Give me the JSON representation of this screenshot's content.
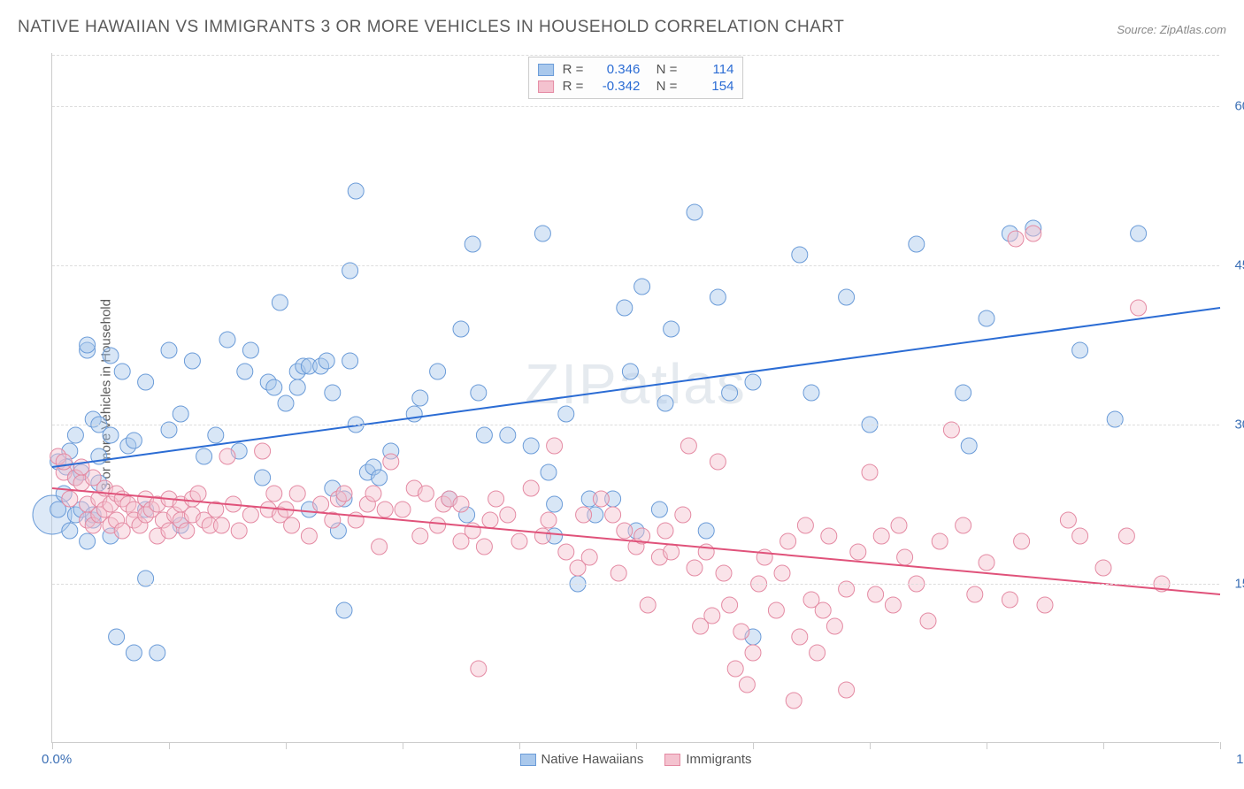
{
  "title": "NATIVE HAWAIIAN VS IMMIGRANTS 3 OR MORE VEHICLES IN HOUSEHOLD CORRELATION CHART",
  "source_label": "Source:",
  "source_value": "ZipAtlas.com",
  "ylabel": "3 or more Vehicles in Household",
  "watermark": "ZIPatlas",
  "chart": {
    "type": "scatter",
    "xlim": [
      0,
      100
    ],
    "ylim": [
      0,
      65
    ],
    "background_color": "#ffffff",
    "grid_color": "#dddddd",
    "axis_color": "#cccccc",
    "tick_label_color": "#3b6fb5",
    "tick_fontsize": 15,
    "yticks": [
      15,
      30,
      45,
      60
    ],
    "ytick_labels": [
      "15.0%",
      "30.0%",
      "45.0%",
      "60.0%"
    ],
    "xticks": [
      0,
      10,
      20,
      30,
      40,
      50,
      60,
      70,
      80,
      90,
      100
    ],
    "xlabel_min": "0.0%",
    "xlabel_max": "100.0%",
    "marker_radius": 9,
    "marker_opacity": 0.45,
    "line_width": 2
  },
  "series": [
    {
      "name": "Native Hawaiians",
      "color_fill": "#a9c8ec",
      "color_stroke": "#6a9bd8",
      "line_color": "#2b6cd4",
      "R": "0.346",
      "N": "114",
      "trend": {
        "x1": 0,
        "y1": 26,
        "x2": 100,
        "y2": 41
      },
      "points": [
        [
          0.5,
          26.5
        ],
        [
          0.5,
          22
        ],
        [
          1,
          23.5
        ],
        [
          1.2,
          26
        ],
        [
          1.5,
          27.5
        ],
        [
          1.5,
          20
        ],
        [
          2,
          25
        ],
        [
          2,
          21.5
        ],
        [
          2,
          29
        ],
        [
          2.5,
          25.5
        ],
        [
          2.5,
          22
        ],
        [
          3,
          37
        ],
        [
          3,
          37.5
        ],
        [
          3,
          19
        ],
        [
          3.5,
          21
        ],
        [
          3.5,
          21.5
        ],
        [
          3.5,
          30.5
        ],
        [
          4,
          27
        ],
        [
          4,
          30
        ],
        [
          4,
          24.5
        ],
        [
          5,
          19.5
        ],
        [
          5,
          36.5
        ],
        [
          5,
          29
        ],
        [
          5.5,
          10
        ],
        [
          6,
          35
        ],
        [
          6.5,
          28
        ],
        [
          7,
          8.5
        ],
        [
          7,
          28.5
        ],
        [
          8,
          34
        ],
        [
          8,
          22
        ],
        [
          8,
          15.5
        ],
        [
          9,
          8.5
        ],
        [
          10,
          29.5
        ],
        [
          10,
          37
        ],
        [
          11,
          20.5
        ],
        [
          11,
          31
        ],
        [
          12,
          36
        ],
        [
          13,
          27
        ],
        [
          14,
          29
        ],
        [
          15,
          38
        ],
        [
          16,
          27.5
        ],
        [
          16.5,
          35
        ],
        [
          17,
          37
        ],
        [
          18,
          25
        ],
        [
          18.5,
          34
        ],
        [
          19,
          33.5
        ],
        [
          19.5,
          41.5
        ],
        [
          20,
          32
        ],
        [
          21,
          33.5
        ],
        [
          21,
          35
        ],
        [
          21.5,
          35.5
        ],
        [
          22,
          22
        ],
        [
          22,
          35.5
        ],
        [
          23,
          35.5
        ],
        [
          23.5,
          36
        ],
        [
          24,
          24
        ],
        [
          24,
          33
        ],
        [
          24.5,
          20
        ],
        [
          25,
          23
        ],
        [
          25,
          12.5
        ],
        [
          25.5,
          44.5
        ],
        [
          25.5,
          36
        ],
        [
          26,
          52
        ],
        [
          26,
          30
        ],
        [
          27,
          25.5
        ],
        [
          27.5,
          26
        ],
        [
          28,
          25
        ],
        [
          29,
          27.5
        ],
        [
          31,
          31
        ],
        [
          31.5,
          32.5
        ],
        [
          33,
          35
        ],
        [
          34,
          23
        ],
        [
          35,
          39
        ],
        [
          35.5,
          21.5
        ],
        [
          36,
          47
        ],
        [
          36.5,
          33
        ],
        [
          37,
          29
        ],
        [
          39,
          29
        ],
        [
          41,
          28
        ],
        [
          42,
          48
        ],
        [
          42.5,
          25.5
        ],
        [
          43,
          19.5
        ],
        [
          43,
          22.5
        ],
        [
          44,
          31
        ],
        [
          45,
          15
        ],
        [
          46,
          23
        ],
        [
          46.5,
          21.5
        ],
        [
          48,
          23
        ],
        [
          49,
          41
        ],
        [
          49.5,
          35
        ],
        [
          50,
          20
        ],
        [
          50.5,
          43
        ],
        [
          52,
          22
        ],
        [
          52.5,
          32
        ],
        [
          53,
          39
        ],
        [
          55,
          50
        ],
        [
          56,
          20
        ],
        [
          57,
          42
        ],
        [
          58,
          33
        ],
        [
          60,
          34
        ],
        [
          60,
          10
        ],
        [
          64,
          46
        ],
        [
          65,
          33
        ],
        [
          68,
          42
        ],
        [
          70,
          30
        ],
        [
          74,
          47
        ],
        [
          78,
          33
        ],
        [
          78.5,
          28
        ],
        [
          80,
          40
        ],
        [
          82,
          48
        ],
        [
          84,
          48.5
        ],
        [
          88,
          37
        ],
        [
          91,
          30.5
        ],
        [
          93,
          48
        ]
      ]
    },
    {
      "name": "Immigrants",
      "color_fill": "#f4c2cf",
      "color_stroke": "#e48aa3",
      "line_color": "#e0527a",
      "R": "-0.342",
      "N": "154",
      "trend": {
        "x1": 0,
        "y1": 24,
        "x2": 100,
        "y2": 14
      },
      "points": [
        [
          0.5,
          27
        ],
        [
          1,
          25.5
        ],
        [
          1,
          26.5
        ],
        [
          1.5,
          23
        ],
        [
          2,
          25
        ],
        [
          2.5,
          24.5
        ],
        [
          2.5,
          26
        ],
        [
          3,
          21
        ],
        [
          3,
          22.5
        ],
        [
          3.5,
          25
        ],
        [
          3.5,
          20.5
        ],
        [
          4,
          23
        ],
        [
          4,
          21.5
        ],
        [
          4.5,
          24
        ],
        [
          4.5,
          22
        ],
        [
          5,
          20.5
        ],
        [
          5,
          22.5
        ],
        [
          5.5,
          23.5
        ],
        [
          5.5,
          21
        ],
        [
          6,
          20
        ],
        [
          6,
          23
        ],
        [
          6.5,
          22.5
        ],
        [
          7,
          22
        ],
        [
          7,
          21
        ],
        [
          7.5,
          20.5
        ],
        [
          8,
          23
        ],
        [
          8,
          21.5
        ],
        [
          8.5,
          22
        ],
        [
          9,
          19.5
        ],
        [
          9,
          22.5
        ],
        [
          9.5,
          21
        ],
        [
          10,
          23
        ],
        [
          10,
          20
        ],
        [
          10.5,
          21.5
        ],
        [
          11,
          22.5
        ],
        [
          11,
          21
        ],
        [
          11.5,
          20
        ],
        [
          12,
          23
        ],
        [
          12,
          21.5
        ],
        [
          12.5,
          23.5
        ],
        [
          13,
          21
        ],
        [
          13.5,
          20.5
        ],
        [
          14,
          22
        ],
        [
          14.5,
          20.5
        ],
        [
          15,
          27
        ],
        [
          15.5,
          22.5
        ],
        [
          16,
          20
        ],
        [
          17,
          21.5
        ],
        [
          18,
          27.5
        ],
        [
          18.5,
          22
        ],
        [
          19,
          23.5
        ],
        [
          19.5,
          21.5
        ],
        [
          20,
          22
        ],
        [
          20.5,
          20.5
        ],
        [
          21,
          23.5
        ],
        [
          22,
          19.5
        ],
        [
          23,
          22.5
        ],
        [
          24,
          21
        ],
        [
          24.5,
          23
        ],
        [
          25,
          23.5
        ],
        [
          26,
          21
        ],
        [
          27,
          22.5
        ],
        [
          27.5,
          23.5
        ],
        [
          28,
          18.5
        ],
        [
          28.5,
          22
        ],
        [
          29,
          26.5
        ],
        [
          30,
          22
        ],
        [
          31,
          24
        ],
        [
          31.5,
          19.5
        ],
        [
          32,
          23.5
        ],
        [
          33,
          20.5
        ],
        [
          33.5,
          22.5
        ],
        [
          34,
          23
        ],
        [
          35,
          19
        ],
        [
          35,
          22.5
        ],
        [
          36,
          20
        ],
        [
          36.5,
          7
        ],
        [
          37,
          18.5
        ],
        [
          37.5,
          21
        ],
        [
          38,
          23
        ],
        [
          39,
          21.5
        ],
        [
          40,
          19
        ],
        [
          41,
          24
        ],
        [
          42,
          19.5
        ],
        [
          42.5,
          21
        ],
        [
          43,
          28
        ],
        [
          44,
          18
        ],
        [
          45,
          16.5
        ],
        [
          45.5,
          21.5
        ],
        [
          46,
          17.5
        ],
        [
          47,
          23
        ],
        [
          48,
          21.5
        ],
        [
          48.5,
          16
        ],
        [
          49,
          20
        ],
        [
          50,
          18.5
        ],
        [
          50.5,
          19.5
        ],
        [
          51,
          13
        ],
        [
          52,
          17.5
        ],
        [
          52.5,
          20
        ],
        [
          53,
          18
        ],
        [
          54,
          21.5
        ],
        [
          54.5,
          28
        ],
        [
          55,
          16.5
        ],
        [
          55.5,
          11
        ],
        [
          56,
          18
        ],
        [
          56.5,
          12
        ],
        [
          57,
          26.5
        ],
        [
          57.5,
          16
        ],
        [
          58,
          13
        ],
        [
          58.5,
          7
        ],
        [
          59,
          10.5
        ],
        [
          59.5,
          5.5
        ],
        [
          60,
          8.5
        ],
        [
          60.5,
          15
        ],
        [
          61,
          17.5
        ],
        [
          62,
          12.5
        ],
        [
          62.5,
          16
        ],
        [
          63,
          19
        ],
        [
          63.5,
          4
        ],
        [
          64,
          10
        ],
        [
          64.5,
          20.5
        ],
        [
          65,
          13.5
        ],
        [
          65.5,
          8.5
        ],
        [
          66,
          12.5
        ],
        [
          66.5,
          19.5
        ],
        [
          67,
          11
        ],
        [
          68,
          5
        ],
        [
          68,
          14.5
        ],
        [
          69,
          18
        ],
        [
          70,
          25.5
        ],
        [
          70.5,
          14
        ],
        [
          71,
          19.5
        ],
        [
          72,
          13
        ],
        [
          72.5,
          20.5
        ],
        [
          73,
          17.5
        ],
        [
          74,
          15
        ],
        [
          75,
          11.5
        ],
        [
          76,
          19
        ],
        [
          77,
          29.5
        ],
        [
          78,
          20.5
        ],
        [
          79,
          14
        ],
        [
          80,
          17
        ],
        [
          82,
          13.5
        ],
        [
          82.5,
          47.5
        ],
        [
          83,
          19
        ],
        [
          84,
          48
        ],
        [
          85,
          13
        ],
        [
          87,
          21
        ],
        [
          88,
          19.5
        ],
        [
          90,
          16.5
        ],
        [
          92,
          19.5
        ],
        [
          93,
          41
        ],
        [
          95,
          15
        ]
      ]
    }
  ],
  "legend_bottom": [
    {
      "label": "Native Hawaiians",
      "swatch_fill": "#a9c8ec",
      "swatch_stroke": "#6a9bd8"
    },
    {
      "label": "Immigrants",
      "swatch_fill": "#f4c2cf",
      "swatch_stroke": "#e48aa3"
    }
  ]
}
